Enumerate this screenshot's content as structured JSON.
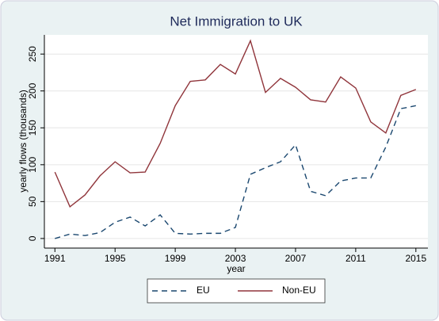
{
  "chart_data": {
    "type": "line",
    "title": "Net Immigration to UK",
    "x_label": "year",
    "y_label": "yearly flows (thousands)",
    "x": [
      1991,
      1992,
      1993,
      1994,
      1995,
      1996,
      1997,
      1998,
      1999,
      2000,
      2001,
      2002,
      2003,
      2004,
      2005,
      2006,
      2007,
      2008,
      2009,
      2010,
      2011,
      2012,
      2013,
      2014,
      2015
    ],
    "series": [
      {
        "name": "EU",
        "color": "#1a476f",
        "dash": "dashed",
        "values": [
          0,
          6,
          4,
          8,
          22,
          29,
          17,
          32,
          7,
          6,
          7,
          7,
          15,
          87,
          96,
          104,
          127,
          64,
          58,
          78,
          82,
          82,
          124,
          176,
          180
        ]
      },
      {
        "name": "Non-EU",
        "color": "#90353b",
        "dash": "solid",
        "values": [
          90,
          43,
          59,
          85,
          104,
          89,
          90,
          129,
          180,
          213,
          215,
          236,
          223,
          268,
          198,
          217,
          205,
          188,
          185,
          219,
          204,
          158,
          143,
          194,
          202
        ]
      }
    ],
    "xlim": [
      1990.3,
      2015.8
    ],
    "ylim": [
      -13,
      276
    ],
    "xticks": [
      1991,
      1995,
      1999,
      2003,
      2007,
      2011,
      2015
    ],
    "yticks": [
      0,
      50,
      100,
      150,
      200,
      250
    ],
    "grid": true,
    "legend": "bottom"
  }
}
